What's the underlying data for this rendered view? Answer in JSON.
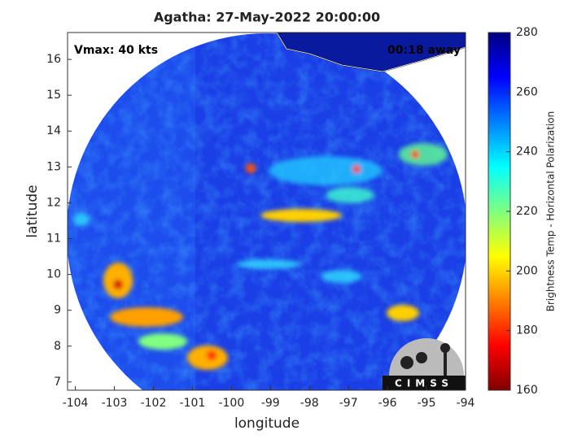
{
  "chart_data": {
    "type": "map",
    "title": "Agatha: 27-May-2022 20:00:00",
    "annotations": [
      "Vmax: 40 kts",
      "00:18 away"
    ],
    "xlabel": "longitude",
    "ylabel": "latitude",
    "xlim": [
      -104.2,
      -94
    ],
    "ylim": [
      6.77,
      16.75
    ],
    "xticks": [
      -104,
      -103,
      -102,
      -101,
      -100,
      -99,
      -98,
      -97,
      -96,
      -95,
      -94
    ],
    "yticks": [
      7,
      8,
      9,
      10,
      11,
      12,
      13,
      14,
      15,
      16
    ],
    "colorbar": {
      "label": "Brightness Temp - Horizontal Polarization",
      "lim": [
        160,
        280
      ],
      "ticks": [
        160,
        180,
        200,
        220,
        240,
        260,
        280
      ]
    },
    "logo": "CIMSS"
  }
}
